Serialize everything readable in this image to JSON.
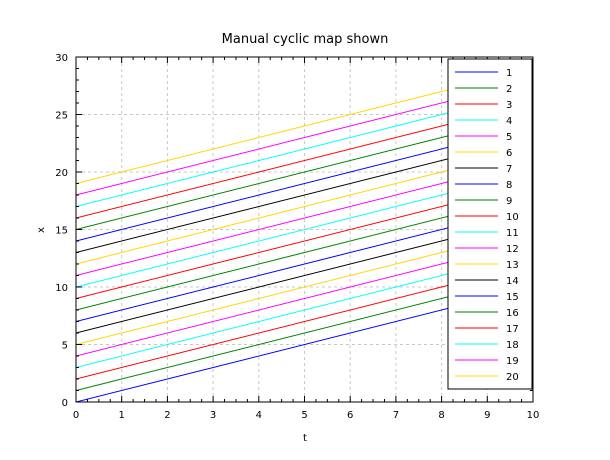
{
  "chart_data": {
    "type": "line",
    "title": "Manual cyclic map shown",
    "xlabel": "t",
    "ylabel": "x",
    "xlim": [
      0,
      10
    ],
    "ylim": [
      0,
      30
    ],
    "xticks": [
      "0",
      "1",
      "2",
      "3",
      "4",
      "5",
      "6",
      "7",
      "8",
      "9",
      "10"
    ],
    "yticks": [
      "0",
      "5",
      "10",
      "15",
      "20",
      "25",
      "30"
    ],
    "grid": true,
    "legend_position": "right",
    "x": [
      0,
      10
    ],
    "series": [
      {
        "name": "1",
        "color": "#0000ff",
        "values": [
          0,
          10
        ]
      },
      {
        "name": "2",
        "color": "#008000",
        "values": [
          1,
          11
        ]
      },
      {
        "name": "3",
        "color": "#ff0000",
        "values": [
          2,
          12
        ]
      },
      {
        "name": "4",
        "color": "#00ffff",
        "values": [
          3,
          13
        ]
      },
      {
        "name": "5",
        "color": "#ff00ff",
        "values": [
          4,
          14
        ]
      },
      {
        "name": "6",
        "color": "#ffd700",
        "values": [
          5,
          15
        ]
      },
      {
        "name": "7",
        "color": "#000000",
        "values": [
          6,
          16
        ]
      },
      {
        "name": "8",
        "color": "#0000ff",
        "values": [
          7,
          17
        ]
      },
      {
        "name": "9",
        "color": "#008000",
        "values": [
          8,
          18
        ]
      },
      {
        "name": "10",
        "color": "#ff0000",
        "values": [
          9,
          19
        ]
      },
      {
        "name": "11",
        "color": "#00ffff",
        "values": [
          10,
          20
        ]
      },
      {
        "name": "12",
        "color": "#ff00ff",
        "values": [
          11,
          21
        ]
      },
      {
        "name": "13",
        "color": "#ffd700",
        "values": [
          12,
          22
        ]
      },
      {
        "name": "14",
        "color": "#000000",
        "values": [
          13,
          23
        ]
      },
      {
        "name": "15",
        "color": "#0000ff",
        "values": [
          14,
          24
        ]
      },
      {
        "name": "16",
        "color": "#008000",
        "values": [
          15,
          25
        ]
      },
      {
        "name": "17",
        "color": "#ff0000",
        "values": [
          16,
          26
        ]
      },
      {
        "name": "18",
        "color": "#00ffff",
        "values": [
          17,
          27
        ]
      },
      {
        "name": "19",
        "color": "#ff00ff",
        "values": [
          18,
          28
        ]
      },
      {
        "name": "20",
        "color": "#ffd700",
        "values": [
          19,
          29
        ]
      }
    ]
  }
}
